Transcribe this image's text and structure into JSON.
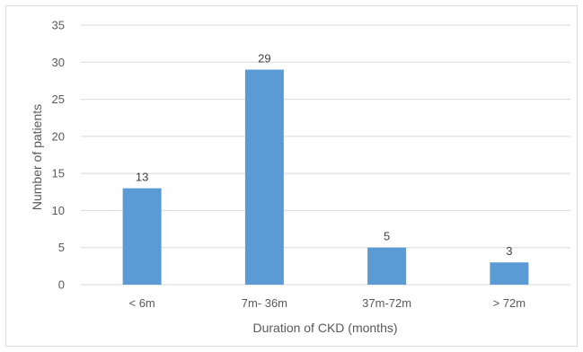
{
  "chart_data": {
    "type": "bar",
    "categories": [
      "< 6m",
      "7m- 36m",
      "37m-72m",
      "> 72m"
    ],
    "values": [
      13,
      29,
      5,
      3
    ],
    "data_labels": [
      "13",
      "29",
      "5",
      "3"
    ],
    "title": "",
    "xlabel": "Duration of CKD (months)",
    "ylabel": "Number of patients",
    "ylim": [
      0,
      35
    ],
    "yticks": [
      0,
      5,
      10,
      15,
      20,
      25,
      30,
      35
    ],
    "grid": true,
    "legend": "none",
    "bar_color": "#5b9bd5",
    "grid_color": "#d9d9d9"
  }
}
